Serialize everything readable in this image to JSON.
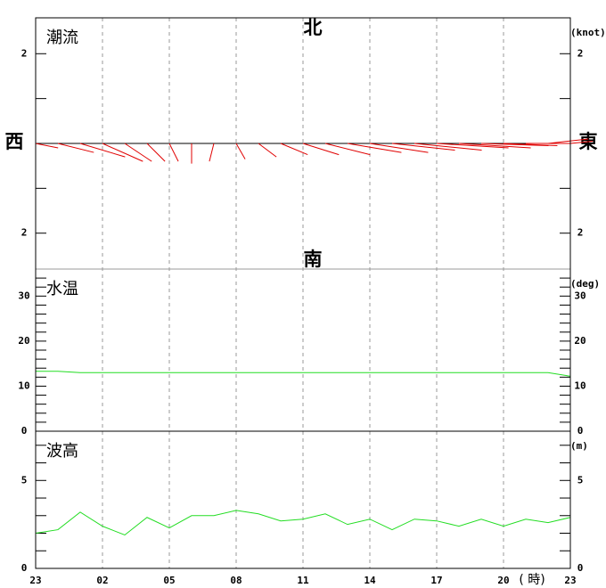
{
  "chart_data": [
    {
      "type": "vector",
      "title": "潮流",
      "unit": "(knot)",
      "directions": {
        "north": "北",
        "south": "南",
        "west": "西",
        "east": "東"
      },
      "east": [
        0.5,
        0.8,
        1.0,
        0.9,
        0.6,
        0.4,
        0.2,
        0.0,
        -0.1,
        0.2,
        0.4,
        0.6,
        0.8,
        1.0,
        1.2,
        1.3,
        1.4,
        1.5,
        1.6,
        1.6,
        1.5,
        1.2,
        1.0,
        0.9,
        0.5
      ],
      "north": [
        -0.1,
        -0.2,
        -0.3,
        -0.4,
        -0.4,
        -0.4,
        -0.4,
        -0.45,
        -0.4,
        -0.35,
        -0.3,
        -0.25,
        -0.25,
        -0.25,
        -0.2,
        -0.2,
        -0.15,
        -0.15,
        -0.1,
        -0.1,
        -0.05,
        -0.05,
        0.0,
        0.1,
        0.05
      ],
      "color": "#e00000",
      "ylim": [
        -2.8,
        2.8
      ],
      "yticks": [
        {
          "value": 2,
          "label": "2"
        },
        {
          "value": -2,
          "label": "2"
        }
      ],
      "minor_yticks": [
        -1,
        0,
        1
      ]
    },
    {
      "type": "line",
      "title": "水温",
      "unit": "(deg)",
      "values": [
        13.3,
        13.3,
        13.0,
        13.0,
        13.0,
        13.0,
        13.0,
        13.0,
        13.0,
        13.0,
        13.0,
        13.0,
        13.0,
        13.0,
        13.0,
        13.0,
        13.0,
        13.0,
        13.0,
        13.0,
        13.0,
        13.0,
        13.0,
        13.0,
        12.2
      ],
      "color": "#22dd22",
      "ylim": [
        0,
        36
      ],
      "yticks": [
        0,
        10,
        20,
        30
      ],
      "minor_yticks": [
        2,
        4,
        6,
        8,
        12,
        14,
        16,
        18,
        22,
        24,
        26,
        28,
        32,
        34
      ]
    },
    {
      "type": "line",
      "title": "波高",
      "unit": "(m)",
      "values": [
        2.0,
        2.2,
        3.2,
        2.4,
        1.9,
        2.9,
        2.3,
        3.0,
        3.0,
        3.3,
        3.1,
        2.7,
        2.8,
        3.1,
        2.5,
        2.8,
        2.2,
        2.8,
        2.7,
        2.4,
        2.8,
        2.4,
        2.8,
        2.6,
        2.9
      ],
      "color": "#22dd22",
      "ylim": [
        0,
        7.8
      ],
      "yticks": [
        0,
        5
      ],
      "minor_yticks": [
        1,
        2,
        3,
        4,
        6,
        7
      ],
      "categories": [
        "23",
        null,
        null,
        "02",
        null,
        null,
        "05",
        null,
        null,
        "08",
        null,
        null,
        "11",
        null,
        null,
        "14",
        null,
        null,
        "17",
        null,
        null,
        "20",
        null,
        null,
        "23"
      ],
      "xlabel": "( 時)"
    }
  ]
}
